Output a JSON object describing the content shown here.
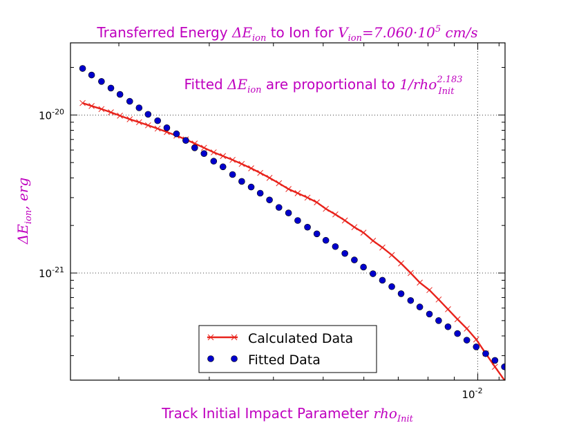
{
  "chart_data": {
    "type": "scatter",
    "title": {
      "prefix": "Transferred Energy ",
      "symbol": "ΔE",
      "sub": "ion",
      "mid": " to Ion for  ",
      "var": "V",
      "var_sub": "ion",
      "value": "=7.060·10",
      "value_exp": "5",
      "unit": " cm/s"
    },
    "annotation": {
      "prefix": "Fitted ",
      "symbol": "ΔE",
      "sub": "ion",
      "mid": " are proportional to ",
      "expr": "1/rho",
      "expr_sub": "Init",
      "expr_sup": "2.183"
    },
    "xlabel": {
      "text": "Track Initial Impact Parameter ",
      "var": "rho",
      "sub": "Init"
    },
    "ylabel": {
      "symbol": "ΔE",
      "sub": "ion",
      "unit": ", erg"
    },
    "xscale": "log",
    "yscale": "log",
    "xlim": [
      0.00161,
      0.0113
    ],
    "ylim": [
      2.1e-22,
      2.86e-20
    ],
    "grid": true,
    "x_ticks": [
      {
        "value": 0.01,
        "base": "10",
        "exp": "-2"
      }
    ],
    "y_ticks": [
      {
        "value": 1e-20,
        "base": "10",
        "exp": "-20"
      },
      {
        "value": 1e-21,
        "base": "10",
        "exp": "-21"
      }
    ],
    "legend_placement": "lower-center",
    "series": [
      {
        "name": "Calculated Data",
        "style": "line-x",
        "color": "#e8221b",
        "x": [
          0.0017,
          0.00177,
          0.00185,
          0.00193,
          0.00201,
          0.0021,
          0.00219,
          0.00228,
          0.00238,
          0.00248,
          0.00259,
          0.0027,
          0.00281,
          0.00293,
          0.00306,
          0.00319,
          0.00333,
          0.00347,
          0.00362,
          0.00377,
          0.00393,
          0.0041,
          0.00428,
          0.00446,
          0.00466,
          0.00486,
          0.00506,
          0.00528,
          0.00551,
          0.00575,
          0.00599,
          0.00625,
          0.00652,
          0.0068,
          0.00709,
          0.0074,
          0.00771,
          0.00805,
          0.00839,
          0.00875,
          0.00913,
          0.00952,
          0.00993,
          0.01036,
          0.0108,
          0.01127
        ],
        "y": [
          1.19e-20,
          1.14e-20,
          1.09e-20,
          1.04e-20,
          9.9e-21,
          9.4e-21,
          9e-21,
          8.6e-21,
          8.2e-21,
          7.8e-21,
          7.4e-21,
          7e-21,
          6.6e-21,
          6.2e-21,
          5.8e-21,
          5.5e-21,
          5.2e-21,
          4.9e-21,
          4.6e-21,
          4.3e-21,
          4e-21,
          3.7e-21,
          3.4e-21,
          3.2e-21,
          3e-21,
          2.8e-21,
          2.55e-21,
          2.35e-21,
          2.15e-21,
          1.95e-21,
          1.8e-21,
          1.6e-21,
          1.45e-21,
          1.3e-21,
          1.15e-21,
          1e-21,
          8.7e-22,
          7.8e-22,
          6.8e-22,
          5.9e-22,
          5.1e-22,
          4.45e-22,
          3.8e-22,
          3.1e-22,
          2.55e-22,
          2.1e-22
        ]
      },
      {
        "name": "Fitted Data",
        "style": "dots",
        "color": "#0000cc",
        "x": [
          0.0017,
          0.00177,
          0.00185,
          0.00193,
          0.00201,
          0.0021,
          0.00219,
          0.00228,
          0.00238,
          0.00248,
          0.00259,
          0.0027,
          0.00281,
          0.00293,
          0.00306,
          0.00319,
          0.00333,
          0.00347,
          0.00362,
          0.00377,
          0.00393,
          0.0041,
          0.00428,
          0.00446,
          0.00466,
          0.00486,
          0.00506,
          0.00528,
          0.00551,
          0.00575,
          0.00599,
          0.00625,
          0.00652,
          0.0068,
          0.00709,
          0.0074,
          0.00771,
          0.00805,
          0.00839,
          0.00875,
          0.00913,
          0.00952,
          0.00993,
          0.01036,
          0.0108,
          0.01127
        ],
        "y": [
          1.97e-20,
          1.79e-20,
          1.63e-20,
          1.48e-20,
          1.35e-20,
          1.22e-20,
          1.11e-20,
          1.01e-20,
          9.2e-21,
          8.3e-21,
          7.6e-21,
          6.9e-21,
          6.2e-21,
          5.7e-21,
          5.1e-21,
          4.7e-21,
          4.2e-21,
          3.8e-21,
          3.5e-21,
          3.2e-21,
          2.9e-21,
          2.6e-21,
          2.4e-21,
          2.15e-21,
          1.95e-21,
          1.77e-21,
          1.61e-21,
          1.47e-21,
          1.33e-21,
          1.21e-21,
          1.09e-21,
          9.9e-22,
          9e-22,
          8.2e-22,
          7.4e-22,
          6.7e-22,
          6.1e-22,
          5.5e-22,
          5e-22,
          4.57e-22,
          4.14e-22,
          3.76e-22,
          3.41e-22,
          3.09e-22,
          2.8e-22,
          2.55e-22
        ]
      }
    ]
  }
}
